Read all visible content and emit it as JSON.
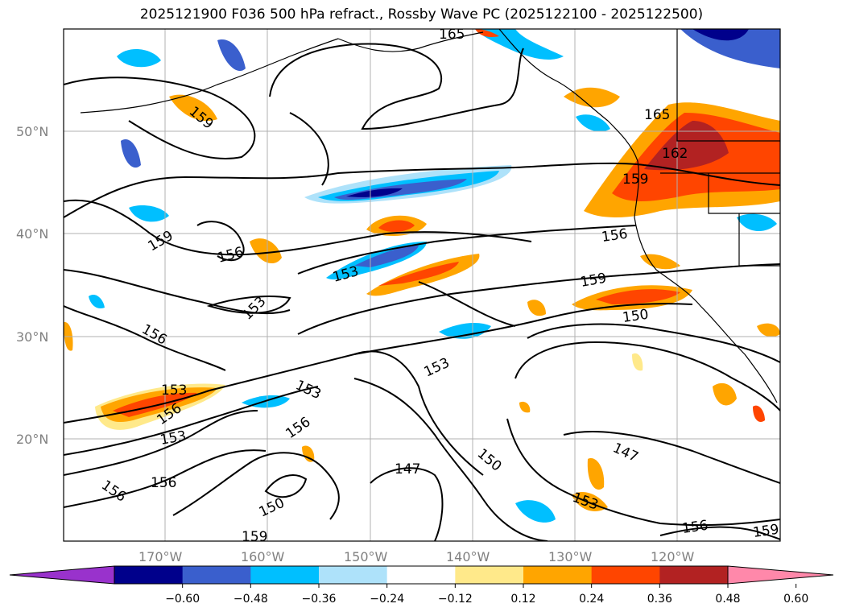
{
  "title": "2025121900 F036 500 hPa refract., Rossby Wave PC (2025122100 - 2025122500)",
  "lat_labels": [
    "50°N",
    "40°N",
    "30°N",
    "20°N"
  ],
  "lon_labels": [
    "170°W",
    "160°W",
    "150°W",
    "140°W",
    "130°W",
    "120°W"
  ],
  "colorbar": {
    "tick_labels": [
      "-0.60",
      "-0.48",
      "-0.36",
      "-0.24",
      "-0.12",
      "0.12",
      "0.24",
      "0.36",
      "0.48",
      "0.60"
    ],
    "colors": [
      "#9932CC",
      "#00008B",
      "#3A5FCD",
      "#00BFFF",
      "#AEE2FA",
      "#FFFFFF",
      "#FFE98A",
      "#FFA500",
      "#FF4500",
      "#B22222",
      "#FF88AA"
    ]
  },
  "contour_labels": [
    "165",
    "159",
    "165",
    "162",
    "159",
    "159",
    "156",
    "156",
    "153",
    "159",
    "153",
    "156",
    "150",
    "153",
    "153",
    "156",
    "153",
    "156",
    "156",
    "153",
    "147",
    "150",
    "147",
    "153",
    "150",
    "156",
    "159",
    "156",
    "159"
  ]
}
